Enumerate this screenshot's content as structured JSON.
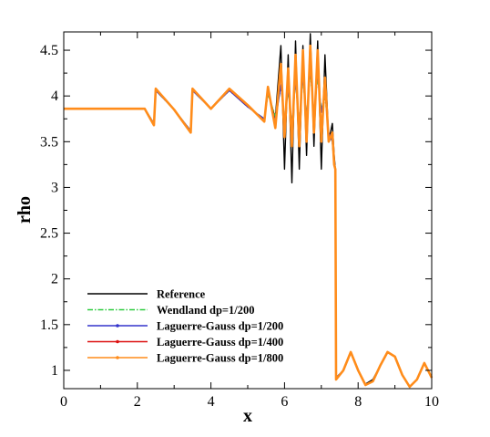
{
  "chart_data": {
    "type": "line",
    "title": "",
    "xlabel": "x",
    "ylabel": "rho",
    "xlim": [
      0,
      10
    ],
    "ylim": [
      0.8,
      4.7
    ],
    "xticks": [
      "0",
      "2",
      "4",
      "6",
      "8",
      "10"
    ],
    "yticks": [
      "1",
      "1.5",
      "2",
      "2.5",
      "3",
      "3.5",
      "4",
      "4.5"
    ],
    "grid": false,
    "legend_position": "bottom-left",
    "series": [
      {
        "name": "Reference",
        "color": "#000000",
        "style": "solid",
        "x": [
          0,
          2.2,
          2.45,
          2.5,
          3.0,
          3.45,
          3.5,
          4.0,
          4.5,
          5.0,
          5.45,
          5.55,
          5.75,
          5.9,
          6.0,
          6.1,
          6.2,
          6.3,
          6.4,
          6.5,
          6.6,
          6.7,
          6.8,
          6.9,
          7.0,
          7.1,
          7.2,
          7.3,
          7.35,
          7.38,
          7.4,
          7.6,
          7.8,
          8.0,
          8.2,
          8.4,
          8.6,
          8.8,
          9.0,
          9.2,
          9.4,
          9.6,
          9.8,
          10.0
        ],
        "y": [
          3.86,
          3.86,
          3.68,
          4.08,
          3.85,
          3.6,
          4.08,
          3.86,
          4.08,
          3.9,
          3.72,
          4.05,
          3.75,
          4.55,
          3.2,
          4.45,
          3.05,
          4.6,
          3.2,
          4.55,
          3.35,
          4.68,
          3.45,
          4.6,
          3.2,
          4.45,
          3.5,
          3.7,
          3.35,
          3.2,
          0.9,
          1.0,
          1.2,
          1.0,
          0.85,
          0.9,
          1.05,
          1.2,
          1.15,
          0.95,
          0.82,
          0.9,
          1.08,
          0.92
        ]
      },
      {
        "name": "Wendland dp=1/200",
        "color": "#2ecc40",
        "style": "dashdot",
        "x": [
          0,
          2.2,
          2.45,
          2.5,
          3.0,
          3.45,
          3.5,
          4.0,
          4.5,
          5.0,
          5.45,
          5.55,
          5.75,
          5.9,
          6.0,
          6.1,
          6.2,
          6.3,
          6.4,
          6.5,
          6.6,
          6.7,
          6.8,
          6.9,
          7.0,
          7.1,
          7.2,
          7.3,
          7.35,
          7.38,
          7.4,
          7.6,
          7.8,
          8.0,
          8.2,
          8.4,
          8.6,
          8.8,
          9.0,
          9.2,
          9.4,
          9.6,
          9.8,
          10.0
        ],
        "y": [
          3.86,
          3.86,
          3.7,
          4.06,
          3.85,
          3.62,
          4.06,
          3.86,
          4.06,
          3.88,
          3.75,
          4.02,
          3.78,
          4.1,
          3.75,
          4.05,
          3.7,
          4.15,
          3.7,
          4.18,
          3.78,
          4.25,
          3.82,
          4.2,
          3.85,
          4.0,
          3.6,
          3.5,
          3.25,
          3.2,
          0.92,
          1.0,
          1.2,
          1.0,
          0.84,
          0.88,
          1.05,
          1.2,
          1.15,
          0.95,
          0.82,
          0.9,
          1.08,
          0.92
        ]
      },
      {
        "name": "Laguerre-Gauss dp=1/200",
        "color": "#3333cc",
        "style": "solid",
        "x": [
          0,
          2.2,
          2.45,
          2.5,
          3.0,
          3.45,
          3.5,
          4.0,
          4.5,
          5.0,
          5.45,
          5.55,
          5.75,
          5.9,
          6.0,
          6.1,
          6.2,
          6.3,
          6.4,
          6.5,
          6.6,
          6.7,
          6.8,
          6.9,
          7.0,
          7.1,
          7.2,
          7.3,
          7.35,
          7.38,
          7.4,
          7.6,
          7.8,
          8.0,
          8.2,
          8.4,
          8.6,
          8.8,
          9.0,
          9.2,
          9.4,
          9.6,
          9.8,
          10.0
        ],
        "y": [
          3.86,
          3.86,
          3.7,
          4.06,
          3.85,
          3.62,
          4.06,
          3.86,
          4.06,
          3.88,
          3.75,
          4.05,
          3.72,
          4.12,
          3.72,
          4.08,
          3.68,
          4.18,
          3.68,
          4.22,
          3.75,
          4.3,
          3.8,
          4.25,
          3.82,
          4.05,
          3.6,
          3.5,
          3.25,
          3.2,
          0.92,
          1.0,
          1.2,
          1.0,
          0.84,
          0.88,
          1.05,
          1.2,
          1.15,
          0.95,
          0.82,
          0.9,
          1.08,
          0.92
        ]
      },
      {
        "name": "Laguerre-Gauss dp=1/400",
        "color": "#dd1111",
        "style": "solid",
        "x": [
          0,
          2.2,
          2.45,
          2.5,
          3.0,
          3.45,
          3.5,
          4.0,
          4.5,
          5.0,
          5.45,
          5.55,
          5.75,
          5.9,
          6.0,
          6.1,
          6.2,
          6.3,
          6.4,
          6.5,
          6.6,
          6.7,
          6.8,
          6.9,
          7.0,
          7.1,
          7.2,
          7.3,
          7.35,
          7.38,
          7.4,
          7.6,
          7.8,
          8.0,
          8.2,
          8.4,
          8.6,
          8.8,
          9.0,
          9.2,
          9.4,
          9.6,
          9.8,
          10.0
        ],
        "y": [
          3.86,
          3.86,
          3.69,
          4.07,
          3.85,
          3.61,
          4.07,
          3.86,
          4.07,
          3.89,
          3.73,
          4.08,
          3.68,
          4.25,
          3.62,
          4.2,
          3.55,
          4.32,
          3.55,
          4.38,
          3.62,
          4.45,
          3.7,
          4.4,
          3.62,
          4.15,
          3.55,
          3.55,
          3.25,
          3.2,
          0.91,
          1.0,
          1.2,
          1.0,
          0.84,
          0.88,
          1.05,
          1.2,
          1.15,
          0.95,
          0.82,
          0.9,
          1.08,
          0.92
        ]
      },
      {
        "name": "Laguerre-Gauss dp=1/800",
        "color": "#ff8c1a",
        "style": "solid",
        "x": [
          0,
          2.2,
          2.45,
          2.5,
          3.0,
          3.45,
          3.5,
          4.0,
          4.5,
          5.0,
          5.45,
          5.55,
          5.75,
          5.9,
          6.0,
          6.1,
          6.2,
          6.3,
          6.4,
          6.5,
          6.6,
          6.7,
          6.8,
          6.9,
          7.0,
          7.1,
          7.2,
          7.3,
          7.35,
          7.38,
          7.4,
          7.6,
          7.8,
          8.0,
          8.2,
          8.4,
          8.6,
          8.8,
          9.0,
          9.2,
          9.4,
          9.6,
          9.8,
          10.0
        ],
        "y": [
          3.86,
          3.86,
          3.68,
          4.08,
          3.85,
          3.6,
          4.08,
          3.86,
          4.08,
          3.9,
          3.72,
          4.1,
          3.65,
          4.35,
          3.55,
          4.3,
          3.45,
          4.45,
          3.45,
          4.5,
          3.5,
          4.55,
          3.6,
          4.5,
          3.5,
          4.2,
          3.5,
          3.6,
          3.25,
          3.2,
          0.9,
          1.0,
          1.2,
          1.0,
          0.84,
          0.88,
          1.05,
          1.2,
          1.15,
          0.95,
          0.82,
          0.9,
          1.08,
          0.92
        ]
      }
    ]
  }
}
